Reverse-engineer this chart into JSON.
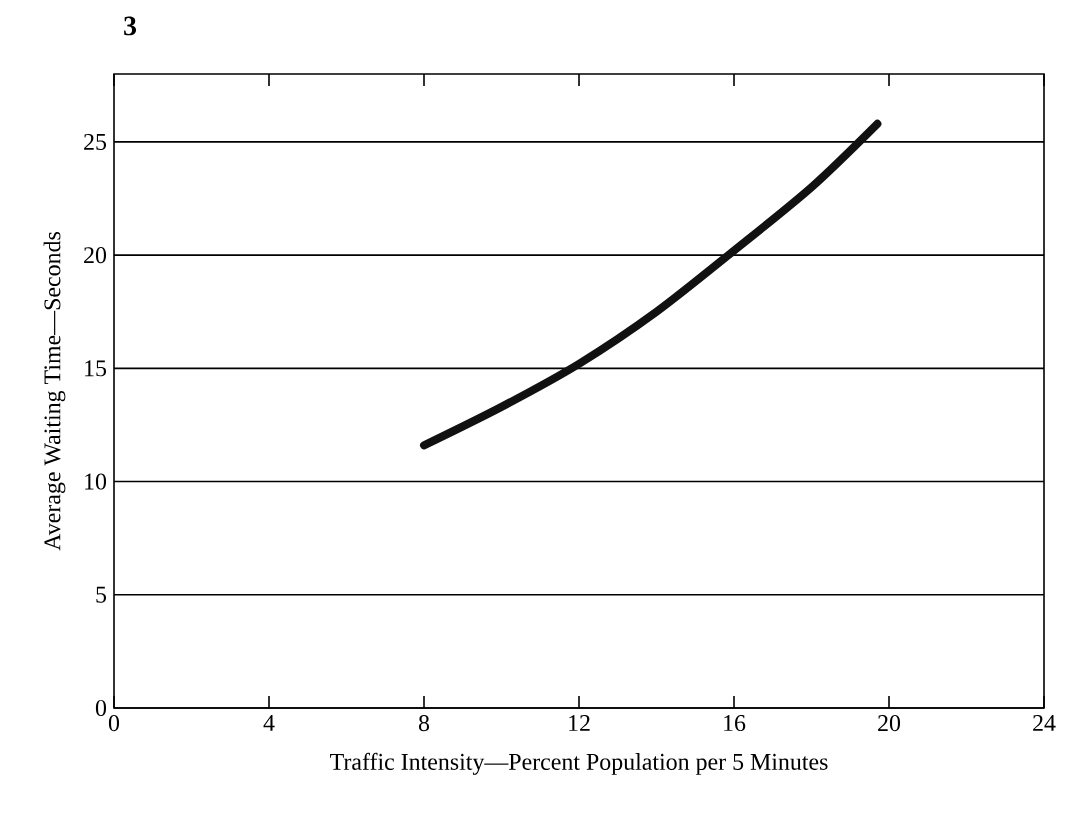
{
  "chart_data": {
    "type": "line",
    "xlabel": "Traffic Intensity—Percent   Population per 5 Minutes",
    "ylabel": "Average Waiting Time—Seconds",
    "annotations": [
      "3"
    ],
    "x": [
      8,
      10,
      12,
      14,
      16,
      18,
      19.7
    ],
    "series": [
      {
        "color": "#111111",
        "values": [
          11.6,
          13.3,
          15.2,
          17.5,
          20.2,
          23,
          25.8
        ]
      }
    ],
    "xlim": [
      0,
      24
    ],
    "ylim": [
      0,
      28
    ],
    "xticks": [
      0,
      4,
      8,
      12,
      16,
      20,
      24
    ],
    "yticks": [
      0,
      5,
      10,
      15,
      20,
      25
    ],
    "grid": "y",
    "line_style": "solid",
    "marker": "none"
  }
}
